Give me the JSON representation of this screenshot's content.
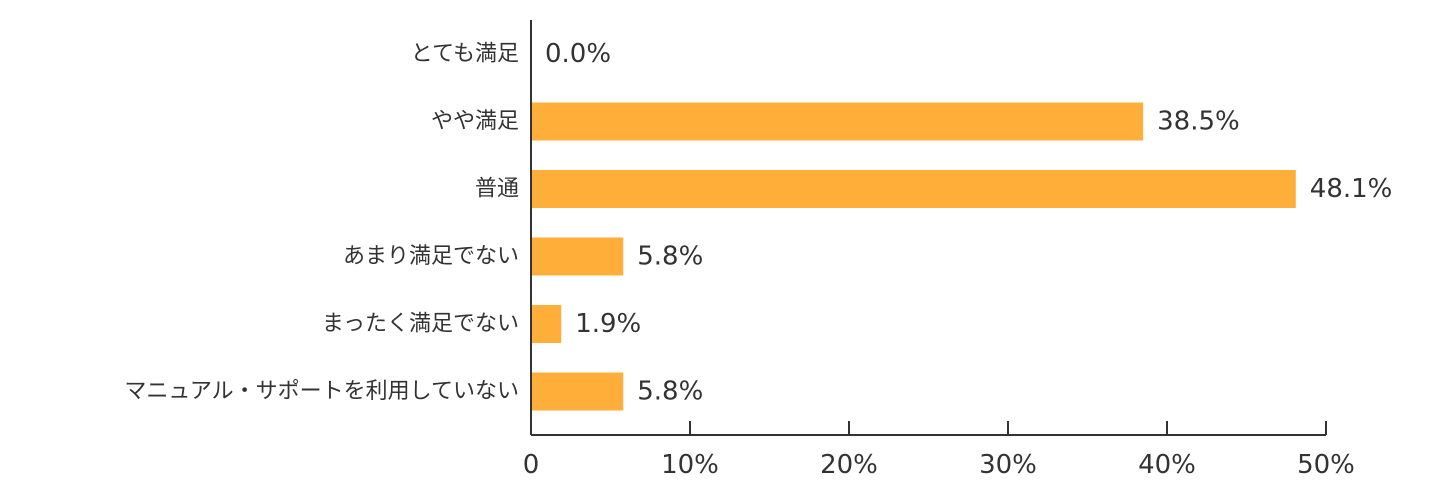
{
  "chart_data": {
    "type": "bar",
    "orientation": "horizontal",
    "categories": [
      "とても満足",
      "やや満足",
      "普通",
      "あまり満足でない",
      "まったく満足でない",
      "マニュアル・サポートを利用していない"
    ],
    "values": [
      0.0,
      38.5,
      48.1,
      5.8,
      1.9,
      5.8
    ],
    "value_labels": [
      "0.0%",
      "38.5%",
      "48.1%",
      "5.8%",
      "1.9%",
      "5.8%"
    ],
    "xlim": [
      0,
      50
    ],
    "x_ticks": [
      0,
      10,
      20,
      30,
      40,
      50
    ],
    "x_tick_labels": [
      "0",
      "10%",
      "20%",
      "30%",
      "40%",
      "50%"
    ],
    "grid": false,
    "legend": "none",
    "colors": {
      "bar": "#FFAE39",
      "axis": "#333333",
      "text": "#333333"
    }
  }
}
